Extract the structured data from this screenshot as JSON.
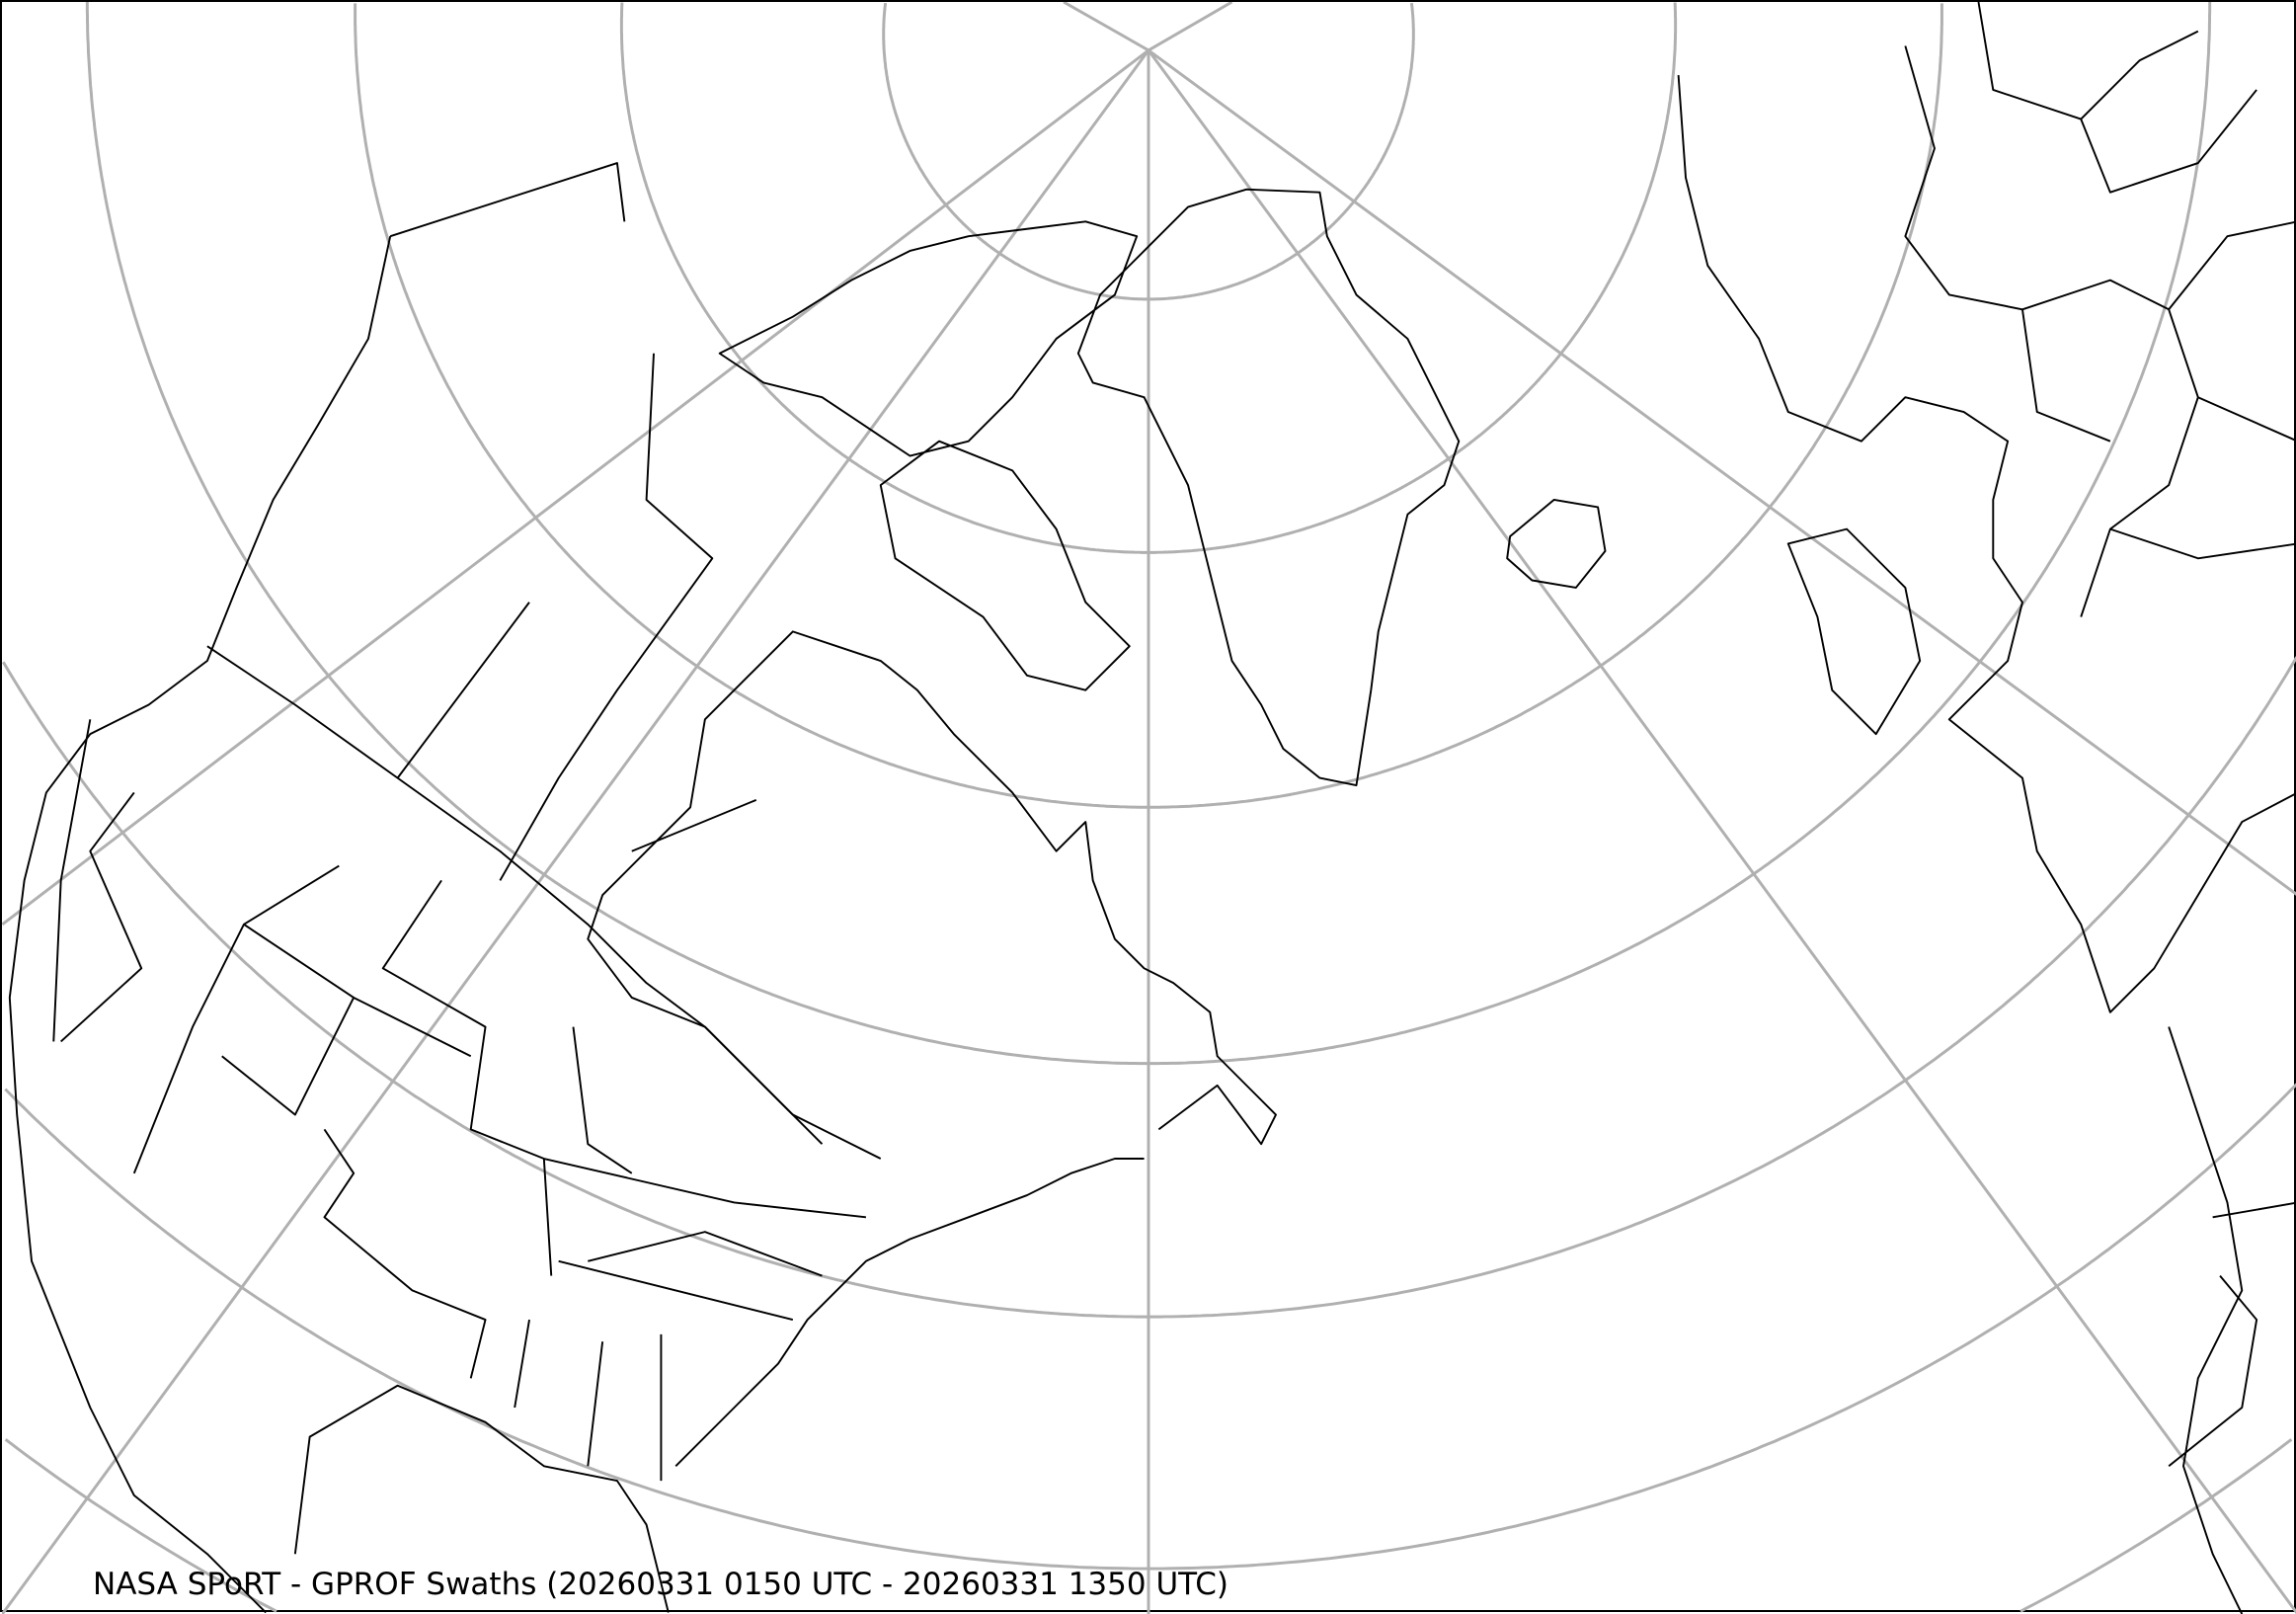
{
  "map": {
    "caption": "NASA SPoRT - GPROF Swaths (20260331 0150 UTC - 20260331 1350 UTC)",
    "projection": "polar stereographic, North America / North Atlantic",
    "graticule_color": "#b0b0b0",
    "coastline_color": "#000000",
    "background_color": "#ffffff"
  }
}
